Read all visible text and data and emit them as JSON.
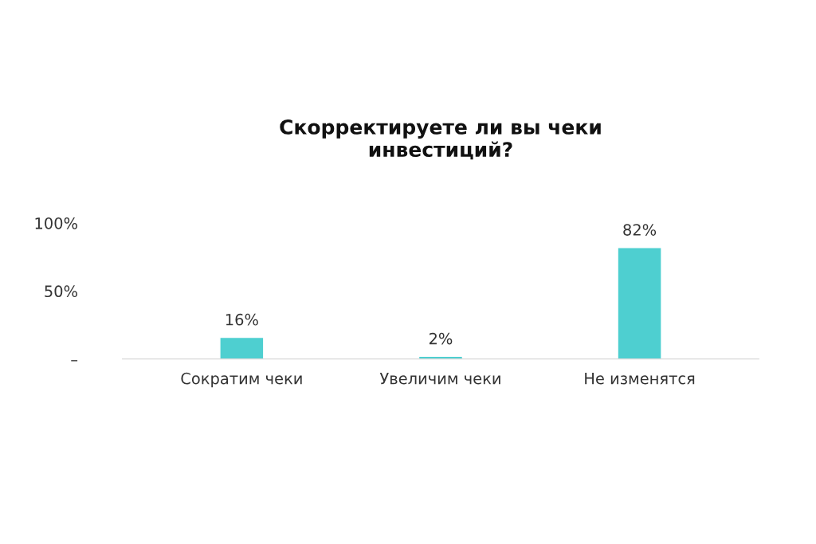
{
  "chart_data": {
    "type": "bar",
    "title": "Скорректируете ли вы чеки\nинвестиций?",
    "categories": [
      "Сократим чеки",
      "Увеличим чеки",
      "Не изменятся"
    ],
    "values": [
      16,
      2,
      82
    ],
    "value_labels": [
      "16%",
      "2%",
      "82%"
    ],
    "color": "#4ecfd0",
    "ylim": [
      0,
      100
    ],
    "yticks": [
      {
        "value": 0,
        "label": "–"
      },
      {
        "value": 50,
        "label": "50%"
      },
      {
        "value": 100,
        "label": "100%"
      }
    ],
    "grid": false
  }
}
